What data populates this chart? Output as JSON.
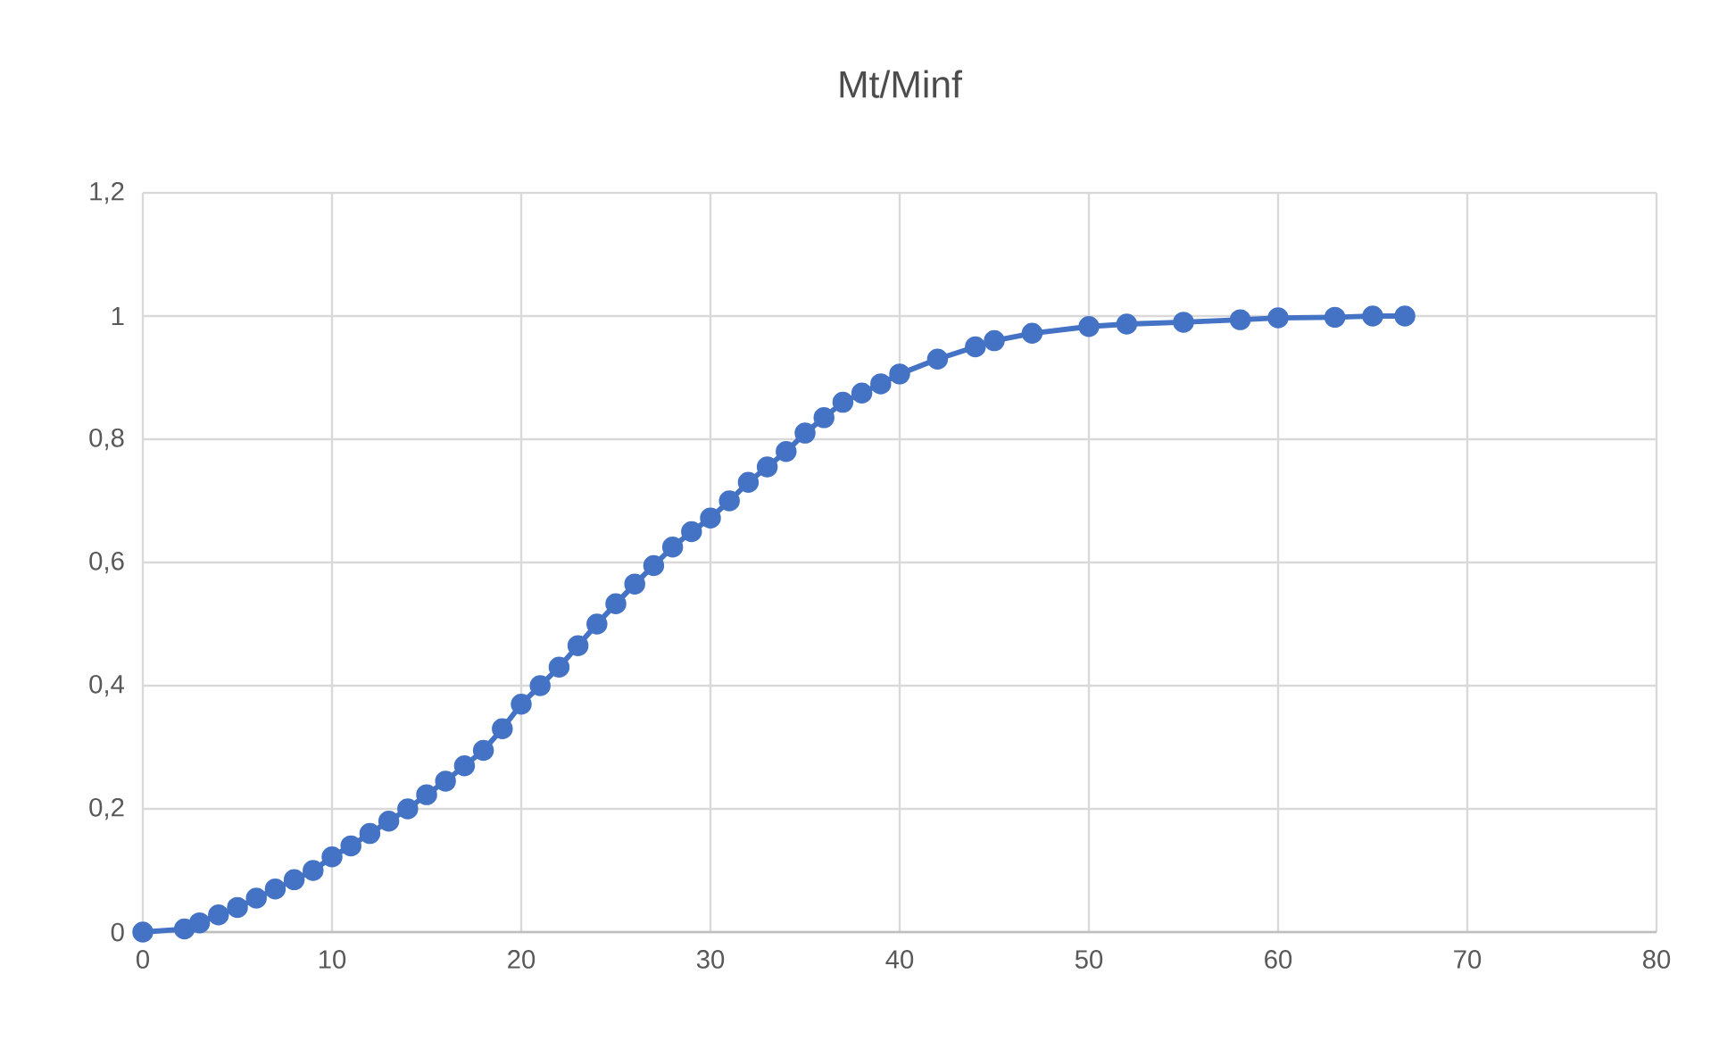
{
  "chart_data": {
    "type": "line",
    "title": "Mt/Minf",
    "x": [
      0,
      2.2,
      3,
      4,
      5,
      6,
      7,
      8,
      9,
      10,
      11,
      12,
      13,
      14,
      15,
      16,
      17,
      18,
      19,
      20,
      21,
      22,
      23,
      24,
      25,
      26,
      27,
      28,
      29,
      30,
      31,
      32,
      33,
      34,
      35,
      36,
      37,
      38,
      39,
      40,
      42,
      44,
      45,
      47,
      50,
      52,
      55,
      58,
      60,
      63,
      65,
      66.7
    ],
    "series": [
      {
        "color": "#4472c4",
        "values": [
          0,
          0.005,
          0.015,
          0.028,
          0.04,
          0.055,
          0.07,
          0.085,
          0.1,
          0.122,
          0.14,
          0.16,
          0.18,
          0.2,
          0.223,
          0.245,
          0.27,
          0.295,
          0.33,
          0.37,
          0.4,
          0.43,
          0.465,
          0.5,
          0.533,
          0.565,
          0.595,
          0.625,
          0.65,
          0.672,
          0.7,
          0.73,
          0.755,
          0.78,
          0.81,
          0.835,
          0.86,
          0.875,
          0.89,
          0.906,
          0.93,
          0.95,
          0.96,
          0.972,
          0.983,
          0.987,
          0.99,
          0.994,
          0.997,
          0.998,
          1.0,
          1.0
        ]
      }
    ],
    "xlim": [
      0,
      80
    ],
    "xticks": [
      0,
      10,
      20,
      30,
      40,
      50,
      60,
      70,
      80
    ],
    "ylim": [
      0,
      1.2
    ],
    "yticks": [
      0,
      {
        "value": 0.2,
        "label": "0,2"
      },
      {
        "value": 0.4,
        "label": "0,4"
      },
      {
        "value": 0.6,
        "label": "0,6"
      },
      {
        "value": 0.8,
        "label": "0,8"
      },
      1,
      {
        "value": 1.2,
        "label": "1,2"
      }
    ],
    "grid": true,
    "marker": "circle",
    "line_style": "solid"
  }
}
